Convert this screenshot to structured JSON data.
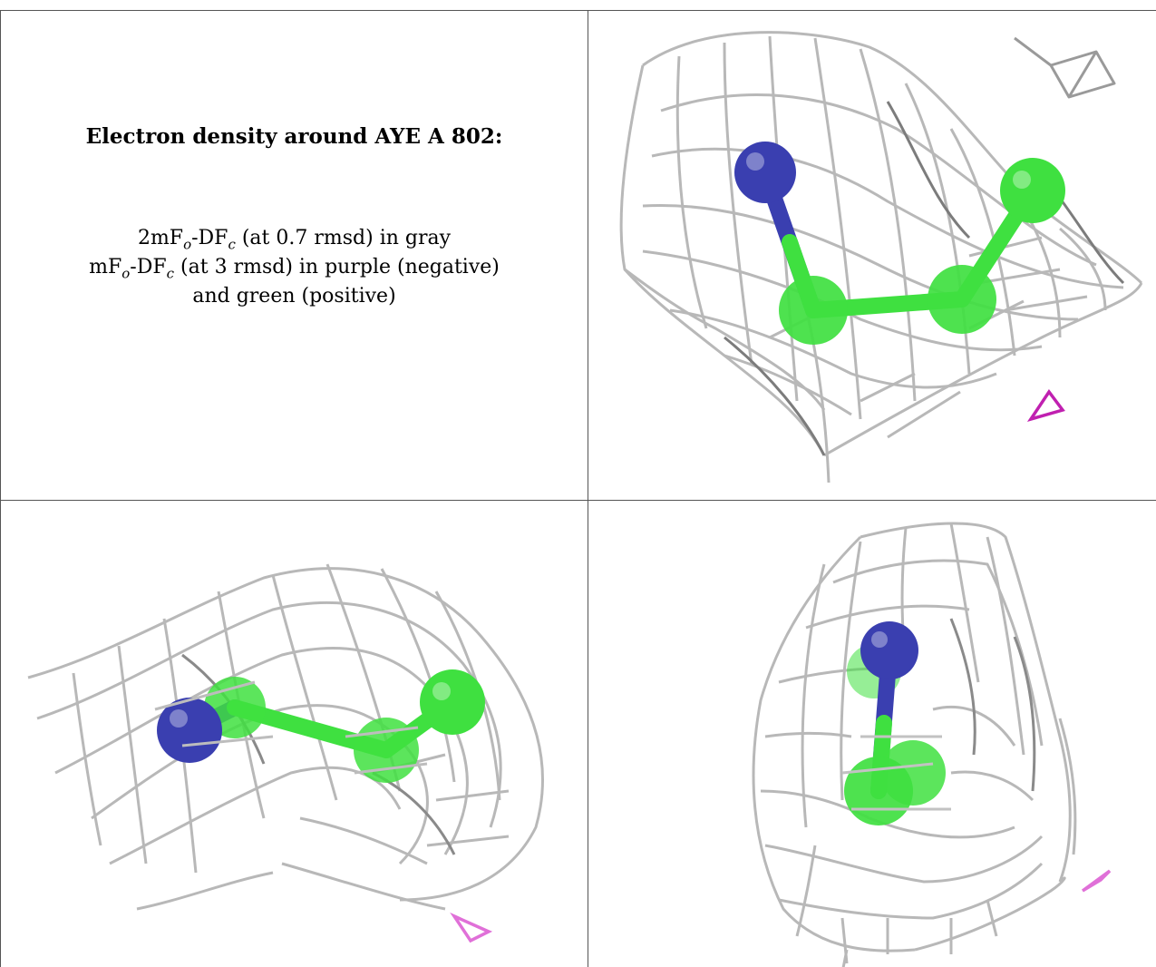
{
  "caption": {
    "title": "Electron density around AYE A 802:",
    "line1_prefix": "2mF",
    "line1_sub1": "o",
    "line1_mid": "-DF",
    "line1_sub2": "c",
    "line1_suffix": " (at 0.7 rmsd) in gray",
    "line2_prefix": "mF",
    "line2_sub1": "o",
    "line2_mid": "-DF",
    "line2_sub2": "c",
    "line2_suffix": " (at 3 rmsd) in purple (negative)",
    "line3": "and green (positive)"
  },
  "colors": {
    "mesh": "#b8b8b8",
    "mesh_dark": "#888888",
    "nitrogen": "#3a3fb0",
    "carbon": "#3fe040",
    "negative_density": "#c020b0",
    "negative_density_light": "#e070d8",
    "border": "#555555"
  },
  "panels": [
    {
      "id": "view-1",
      "atoms": [
        "nitrogen",
        "carbon",
        "carbon",
        "carbon"
      ]
    },
    {
      "id": "view-2",
      "atoms": [
        "nitrogen",
        "carbon",
        "carbon",
        "carbon"
      ]
    },
    {
      "id": "view-3",
      "atoms": [
        "nitrogen",
        "carbon",
        "carbon"
      ]
    }
  ]
}
